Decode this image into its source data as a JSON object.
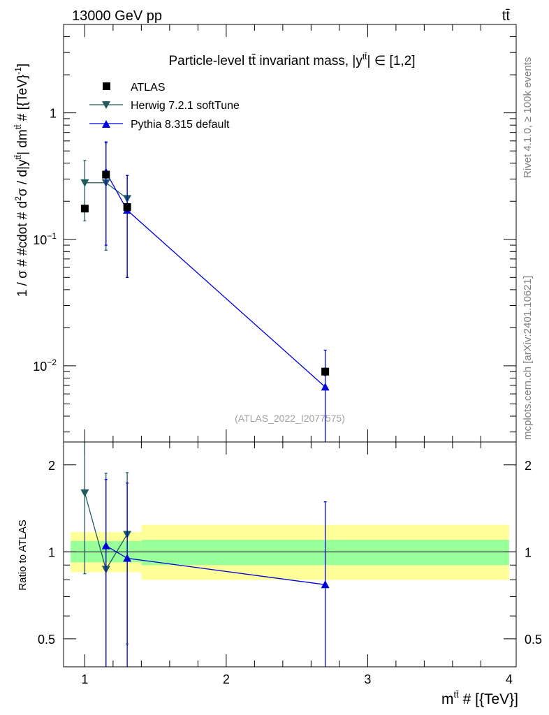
{
  "header": {
    "energy_label": "13000 GeV pp",
    "process_label": "tt̄"
  },
  "side_labels": {
    "rivet": "Rivet 4.1.0, ≥ 100k events",
    "mcplots": "mcplots.cern.ch [arXiv:2401.10621]"
  },
  "analysis_ref": "(ATLAS_2022_I2077575)",
  "colors": {
    "atlas": "#000000",
    "herwig": "#1f5a5e",
    "pythia": "#0000d8",
    "band_inner": "#99ff99",
    "band_outer": "#ffff99"
  },
  "chart_data": [
    {
      "type": "scatter",
      "title": "Particle-level tt̄ invariant mass, |y^tt̄| ∈ [1,2]",
      "title_parts": {
        "main": "Particle-level tt̄ invariant mass, |y",
        "sup": "tt̄",
        "tail": "| ∈ [1,2]"
      },
      "ylabel": "1 / σ # #cdot # d²σ / d|y^tt̄| dm^tt̄ # [{TeV}⁻¹]",
      "ylabel_parts": {
        "a": "1 / σ # #cdot # d",
        "b": "2",
        "c": "σ / d|y",
        "d": "tt̄",
        "e": "| dm",
        "f": "tt̄",
        "g": " # [{TeV}",
        "h": "-1",
        "i": "]"
      },
      "yscale": "log",
      "xlim": [
        0.85,
        4.05
      ],
      "ylim": [
        0.0025,
        5.0
      ],
      "y_ticks": [
        {
          "value": 1,
          "label": "1"
        },
        {
          "value": 0.1,
          "label": "10",
          "sup": "−1"
        },
        {
          "value": 0.01,
          "label": "10",
          "sup": "−2"
        }
      ],
      "legend_position": "top-left",
      "series": [
        {
          "name": "ATLAS",
          "marker": "square",
          "x": [
            1.0,
            1.15,
            1.3,
            2.7
          ],
          "y": [
            0.175,
            0.325,
            0.18,
            0.009
          ],
          "err_lo": [
            0.01,
            0.02,
            0.012,
            0.0006
          ],
          "err_hi": [
            0.01,
            0.02,
            0.012,
            0.0006
          ]
        },
        {
          "name": "Herwig 7.2.1 softTune",
          "marker": "triangle-down",
          "x": [
            1.0,
            1.15,
            1.3
          ],
          "y": [
            0.28,
            0.28,
            0.21
          ],
          "err_lo": [
            0.14,
            0.198,
            0.16
          ],
          "err_hi": [
            0.14,
            0.3,
            0.11
          ]
        },
        {
          "name": "Pythia 8.315 default",
          "marker": "triangle-up",
          "x": [
            1.15,
            1.3,
            2.7
          ],
          "y": [
            0.34,
            0.17,
            0.0068
          ],
          "err_lo": [
            0.25,
            0.12,
            0.0068
          ],
          "err_hi": [
            0.25,
            0.15,
            0.0065
          ]
        }
      ]
    },
    {
      "type": "scatter",
      "title": "",
      "ylabel": "Ratio to ATLAS",
      "xlabel": "m^tt̄ # [{TeV}]",
      "xlabel_parts": {
        "main": "m",
        "sup": "tt̄",
        "tail": " # [{TeV}]"
      },
      "yscale": "log",
      "xlim": [
        0.85,
        4.05
      ],
      "ylim": [
        0.4,
        2.4
      ],
      "x_ticks": [
        1,
        2,
        3,
        4
      ],
      "y_ticks": [
        {
          "value": 0.5,
          "label": "0.5"
        },
        {
          "value": 1,
          "label": "1"
        },
        {
          "value": 2,
          "label": "2"
        }
      ],
      "bands": [
        {
          "x0": 0.9,
          "x1": 1.4,
          "inner": [
            0.92,
            1.09
          ],
          "outer": [
            0.85,
            1.17
          ]
        },
        {
          "x0": 1.4,
          "x1": 4.0,
          "inner": [
            0.9,
            1.1
          ],
          "outer": [
            0.8,
            1.24
          ]
        }
      ],
      "series": [
        {
          "name": "Herwig 7.2.1 softTune",
          "marker": "triangle-down",
          "x": [
            1.0,
            1.15,
            1.3
          ],
          "y": [
            1.6,
            0.87,
            1.15
          ],
          "err_lo": [
            0.76,
            0.47,
            0.67
          ],
          "err_hi": [
            0.9,
            1.0,
            0.73
          ]
        },
        {
          "name": "Pythia 8.315 default",
          "marker": "triangle-up",
          "x": [
            1.15,
            1.3,
            2.7
          ],
          "y": [
            1.05,
            0.95,
            0.77
          ],
          "err_lo": [
            0.7,
            0.65,
            0.77
          ],
          "err_hi": [
            0.73,
            0.78,
            0.72
          ]
        }
      ]
    }
  ]
}
